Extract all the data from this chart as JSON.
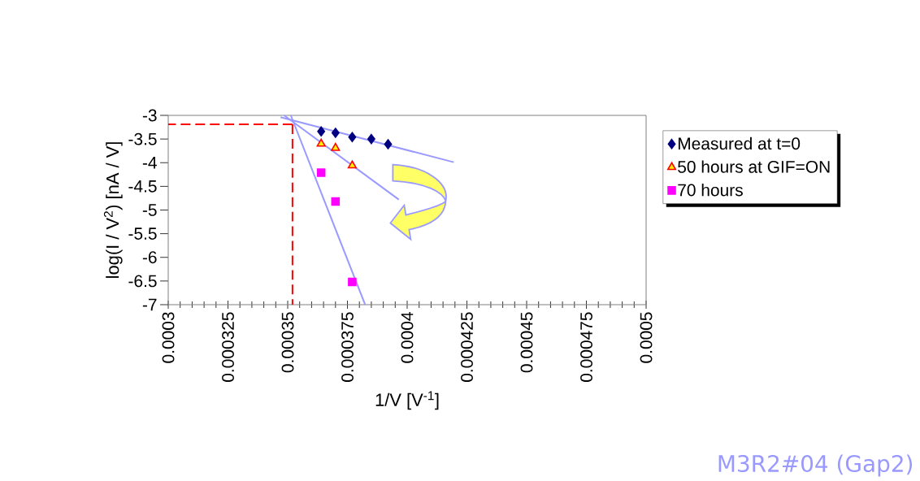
{
  "chart_data": {
    "type": "scatter",
    "xlabel": "1/V [V$^{-1}$]",
    "ylabel": "log(I / V$^{2}$) [nA / V]",
    "xlim": [
      0.0003,
      0.0005
    ],
    "ylim": [
      -7,
      -3
    ],
    "xticks": [
      0.0003,
      0.000325,
      0.00035,
      0.000375,
      0.0004,
      0.000425,
      0.00045,
      0.000475,
      0.0005
    ],
    "yticks": [
      -7,
      -6.5,
      -6,
      -5.5,
      -5,
      -4.5,
      -4,
      -3.5,
      -3
    ],
    "grid": false,
    "legend": "right",
    "series": [
      {
        "name": "Measured at t=0",
        "color": "#000080",
        "marker": "diamond",
        "x": [
          0.000364,
          0.00037,
          0.000377,
          0.000385,
          0.000392
        ],
        "values": [
          -3.34,
          -3.37,
          -3.46,
          -3.5,
          -3.61
        ]
      },
      {
        "name": "50 hours at GIF=ON",
        "color": "#ff0000",
        "marker": "triangle",
        "x": [
          0.000364,
          0.00037,
          0.000377
        ],
        "values": [
          -3.6,
          -3.69,
          -4.06
        ]
      },
      {
        "name": "70 hours",
        "color": "#ff00ff",
        "marker": "square",
        "x": [
          0.000364,
          0.00037,
          0.000377
        ],
        "values": [
          -4.21,
          -4.82,
          -6.52
        ]
      },
      {
        "type": "line",
        "color": "#9999ff",
        "x": [
          0.000347,
          0.0004195
        ],
        "values": [
          -3.04,
          -3.99
        ]
      },
      {
        "type": "line",
        "color": "#9999ff",
        "x": [
          0.0003485,
          0.0003965
        ],
        "values": [
          -3.0,
          -4.78
        ]
      },
      {
        "type": "line",
        "color": "#9999ff",
        "x": [
          0.0003513,
          0.0003824
        ],
        "values": [
          -3.0,
          -7.0
        ]
      },
      {
        "type": "line",
        "color": "#ff0000",
        "line_style": "dashed",
        "x": [
          0.000352,
          0.0003
        ],
        "values": [
          -3.19,
          -3.19
        ]
      },
      {
        "type": "line",
        "color": "#ff0000",
        "line_style": "dashed",
        "x": [
          0.000352,
          0.000352
        ],
        "values": [
          -3.19,
          -7.0
        ]
      }
    ],
    "annotations": [
      "M3R2#04 (Gap2)"
    ]
  }
}
